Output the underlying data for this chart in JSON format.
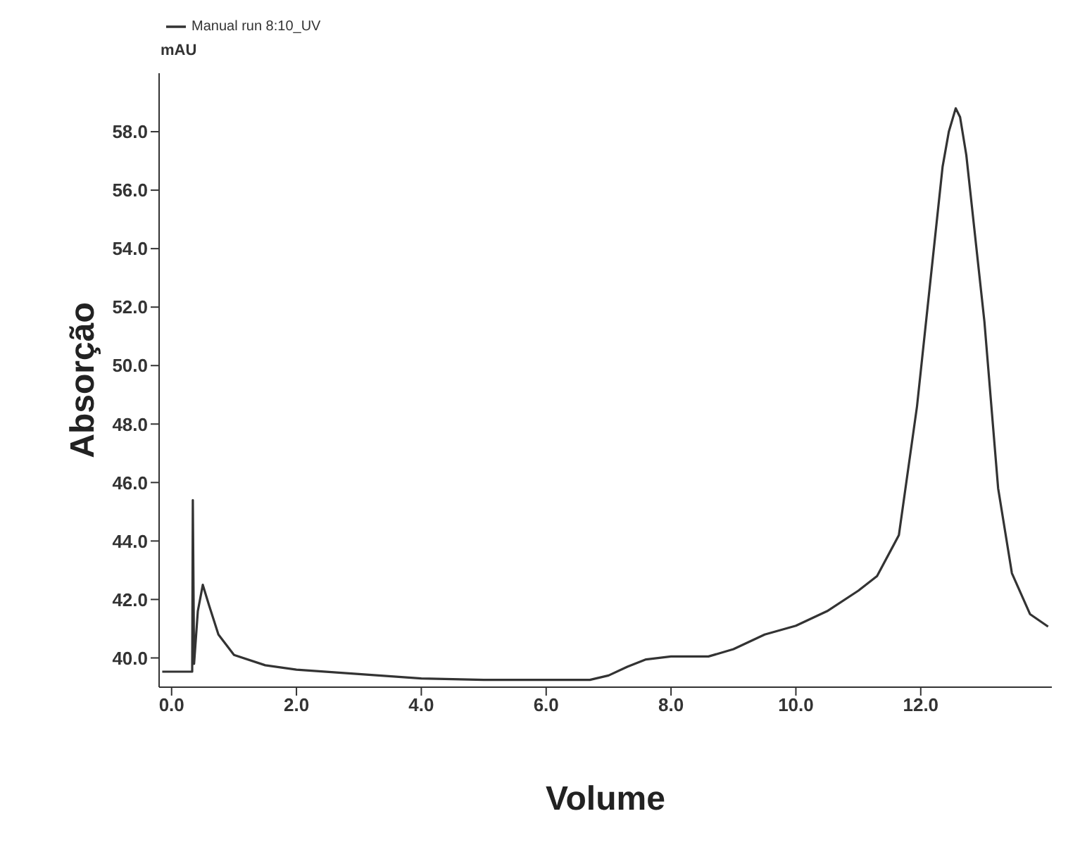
{
  "chart_data": {
    "type": "line",
    "xlabel": "Volume",
    "ylabel": "Absorção",
    "annotations": [
      "mAU"
    ],
    "x": [
      -0.15,
      0.3,
      0.33,
      0.34,
      0.36,
      0.42,
      0.5,
      0.6,
      0.75,
      1.0,
      1.5,
      2.0,
      3.0,
      4.0,
      5.0,
      6.0,
      6.7,
      7.0,
      7.3,
      7.6,
      8.0,
      8.6,
      9.0,
      9.5,
      10.0,
      10.5,
      11.0,
      11.3,
      11.65,
      11.94,
      12.23,
      12.35,
      12.45,
      12.56,
      12.63,
      12.73,
      13.02,
      13.24,
      13.46,
      13.75,
      14.04
    ],
    "series": [
      {
        "name": "Manual run 8:10_UV",
        "color": "#333333",
        "values": [
          39.53,
          39.53,
          39.53,
          45.4,
          39.8,
          41.6,
          42.5,
          41.8,
          40.8,
          40.1,
          39.75,
          39.6,
          39.45,
          39.3,
          39.25,
          39.25,
          39.25,
          39.4,
          39.7,
          39.95,
          40.05,
          40.05,
          40.3,
          40.8,
          41.1,
          41.6,
          42.3,
          42.8,
          44.2,
          48.6,
          54.4,
          56.8,
          58.0,
          58.8,
          58.5,
          57.2,
          51.5,
          45.8,
          42.9,
          41.5,
          41.07
        ]
      }
    ],
    "xlim": [
      -0.2,
      14.1
    ],
    "xticks": [
      {
        "value": 0,
        "label": "0.0"
      },
      {
        "value": 2,
        "label": "2.0"
      },
      {
        "value": 4,
        "label": "4.0"
      },
      {
        "value": 6,
        "label": "6.0"
      },
      {
        "value": 8,
        "label": "8.0"
      },
      {
        "value": 10,
        "label": "10.0"
      },
      {
        "value": 12,
        "label": "12.0"
      }
    ],
    "ylim": [
      39,
      60
    ],
    "yticks": [
      {
        "value": 40,
        "label": "40.0"
      },
      {
        "value": 42,
        "label": "42.0"
      },
      {
        "value": 44,
        "label": "44.0"
      },
      {
        "value": 46,
        "label": "46.0"
      },
      {
        "value": 48,
        "label": "48.0"
      },
      {
        "value": 50,
        "label": "50.0"
      },
      {
        "value": 52,
        "label": "52.0"
      },
      {
        "value": 54,
        "label": "54.0"
      },
      {
        "value": 56,
        "label": "56.0"
      },
      {
        "value": 58,
        "label": "58.0"
      }
    ],
    "grid": false,
    "legend": "top left",
    "marker": "none",
    "line_style": "solid"
  }
}
